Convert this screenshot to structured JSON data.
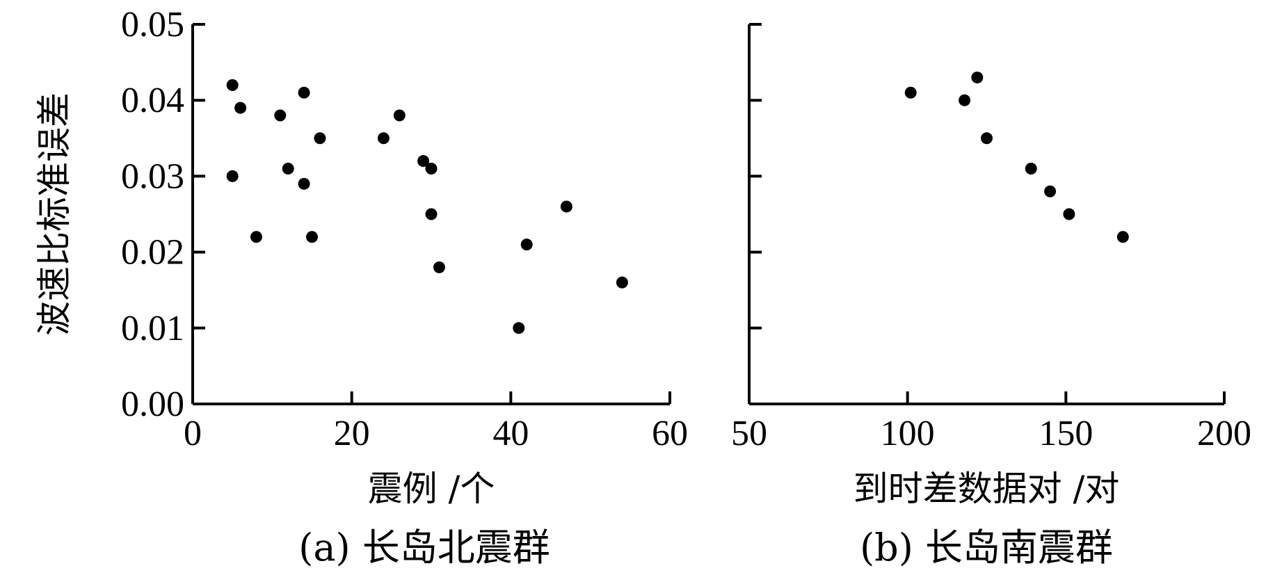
{
  "chart_data": [
    {
      "type": "scatter",
      "caption": "(a) 长岛北震群",
      "xlabel": "震例 /个",
      "ylabel": "波速比标准误差",
      "xlim": [
        0,
        60
      ],
      "ylim": [
        0,
        0.05
      ],
      "x_ticks": [
        "0",
        "20",
        "40",
        "60"
      ],
      "y_ticks": [
        "0.00",
        "0.01",
        "0.02",
        "0.03",
        "0.04",
        "0.05"
      ],
      "grid": false,
      "points": [
        {
          "x": 5,
          "y": 0.042
        },
        {
          "x": 6,
          "y": 0.039
        },
        {
          "x": 5,
          "y": 0.03
        },
        {
          "x": 8,
          "y": 0.022
        },
        {
          "x": 11,
          "y": 0.038
        },
        {
          "x": 12,
          "y": 0.031
        },
        {
          "x": 14,
          "y": 0.041
        },
        {
          "x": 14,
          "y": 0.029
        },
        {
          "x": 15,
          "y": 0.022
        },
        {
          "x": 16,
          "y": 0.035
        },
        {
          "x": 24,
          "y": 0.035
        },
        {
          "x": 26,
          "y": 0.038
        },
        {
          "x": 29,
          "y": 0.032
        },
        {
          "x": 30,
          "y": 0.031
        },
        {
          "x": 30,
          "y": 0.025
        },
        {
          "x": 31,
          "y": 0.018
        },
        {
          "x": 41,
          "y": 0.01
        },
        {
          "x": 42,
          "y": 0.021
        },
        {
          "x": 47,
          "y": 0.026
        },
        {
          "x": 54,
          "y": 0.016
        }
      ]
    },
    {
      "type": "scatter",
      "caption": "(b) 长岛南震群",
      "xlabel": "到时差数据对 /对",
      "ylabel": "",
      "xlim": [
        50,
        200
      ],
      "ylim": [
        0,
        0.05
      ],
      "x_ticks": [
        "50",
        "100",
        "150",
        "200"
      ],
      "y_ticks": [],
      "grid": false,
      "points": [
        {
          "x": 101,
          "y": 0.041
        },
        {
          "x": 118,
          "y": 0.04
        },
        {
          "x": 122,
          "y": 0.043
        },
        {
          "x": 125,
          "y": 0.035
        },
        {
          "x": 139,
          "y": 0.031
        },
        {
          "x": 145,
          "y": 0.028
        },
        {
          "x": 151,
          "y": 0.025
        },
        {
          "x": 168,
          "y": 0.022
        }
      ]
    }
  ]
}
